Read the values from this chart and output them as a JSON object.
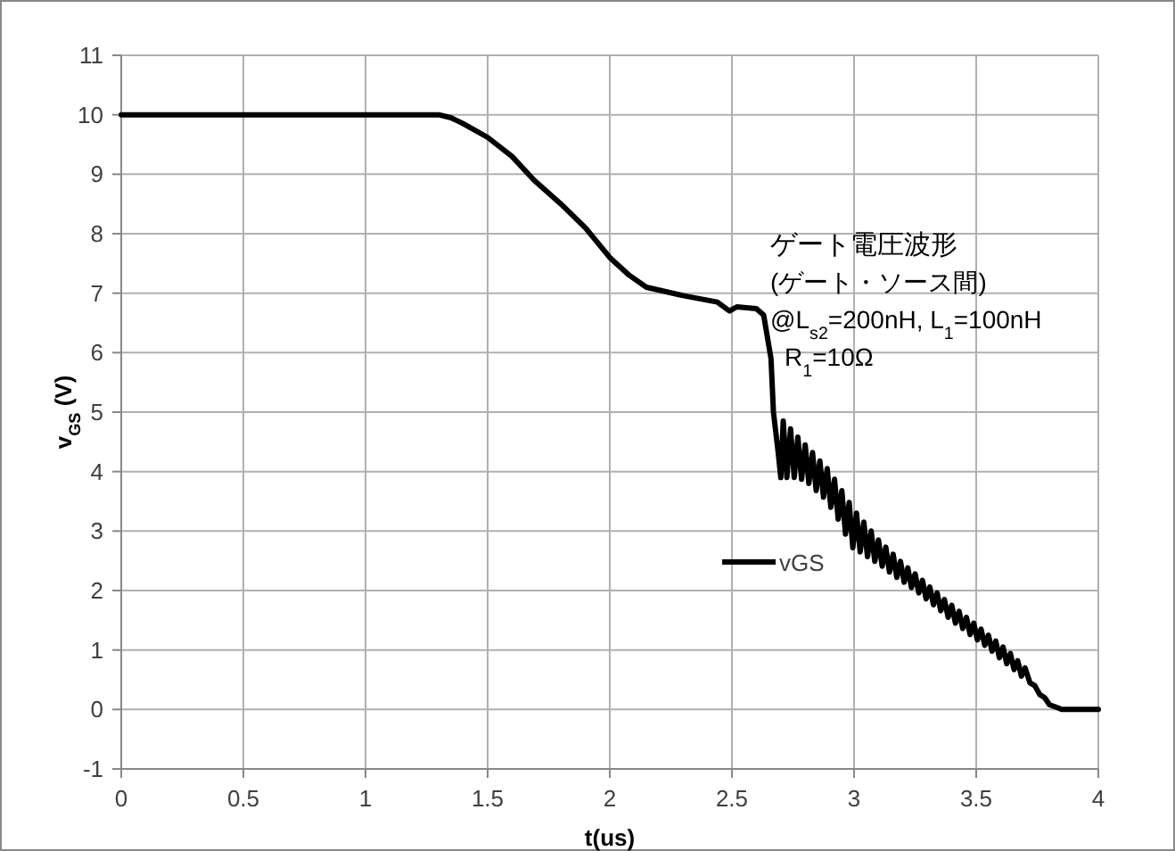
{
  "chart_data": {
    "type": "line",
    "xlabel": "t(us)",
    "ylabel": "v$_{GS}$ (V)",
    "annotations": [
      "ゲート電圧波形",
      "(ゲート・ソース間)",
      "@L$_{s2}$=200nH, L$_{1}$=100nH",
      "R$_{1}$=10Ω"
    ],
    "xlim": [
      0,
      4
    ],
    "ylim": [
      -1,
      11
    ],
    "xticks": [
      0,
      0.5,
      1,
      1.5,
      2,
      2.5,
      3,
      3.5,
      4
    ],
    "yticks": [
      -1,
      0,
      1,
      2,
      3,
      4,
      5,
      6,
      7,
      8,
      9,
      10,
      11
    ],
    "grid": true,
    "legend": "right",
    "marker": "none",
    "line_style": "solid",
    "series": [
      {
        "name": "vGS",
        "color": "#000000",
        "x": [
          0,
          1.3,
          1.35,
          1.4,
          1.5,
          1.6,
          1.69,
          1.8,
          1.9,
          2.0,
          2.08,
          2.15,
          2.3,
          2.44,
          2.49,
          2.52,
          2.6,
          2.63,
          2.66,
          2.67,
          2.69,
          2.7,
          2.71,
          2.725,
          2.74,
          2.755,
          2.77,
          2.785,
          2.8,
          2.815,
          2.83,
          2.845,
          2.86,
          2.875,
          2.89,
          2.905,
          2.92,
          2.935,
          2.95,
          2.965,
          2.98,
          2.995,
          3.01,
          3.025,
          3.04,
          3.055,
          3.07,
          3.085,
          3.1,
          3.115,
          3.13,
          3.145,
          3.16,
          3.175,
          3.19,
          3.205,
          3.22,
          3.235,
          3.25,
          3.265,
          3.28,
          3.295,
          3.31,
          3.325,
          3.34,
          3.355,
          3.37,
          3.385,
          3.4,
          3.415,
          3.43,
          3.445,
          3.46,
          3.475,
          3.49,
          3.505,
          3.52,
          3.535,
          3.55,
          3.565,
          3.58,
          3.595,
          3.61,
          3.625,
          3.64,
          3.655,
          3.67,
          3.685,
          3.7,
          3.72,
          3.74,
          3.76,
          3.78,
          3.8,
          3.82,
          3.85,
          3.9,
          4.0
        ],
        "values": [
          10,
          10,
          9.95,
          9.85,
          9.62,
          9.3,
          8.9,
          8.5,
          8.1,
          7.6,
          7.3,
          7.1,
          6.96,
          6.85,
          6.7,
          6.77,
          6.74,
          6.63,
          5.9,
          5.0,
          4.3,
          3.9,
          4.85,
          3.9,
          4.72,
          3.9,
          4.58,
          3.87,
          4.45,
          3.8,
          4.32,
          3.68,
          4.18,
          3.57,
          4.05,
          3.4,
          3.87,
          3.2,
          3.68,
          2.95,
          3.48,
          2.72,
          3.3,
          2.65,
          3.15,
          2.57,
          3.0,
          2.49,
          2.85,
          2.41,
          2.73,
          2.31,
          2.61,
          2.22,
          2.49,
          2.14,
          2.38,
          2.05,
          2.28,
          1.96,
          2.17,
          1.86,
          2.06,
          1.76,
          1.96,
          1.66,
          1.85,
          1.55,
          1.75,
          1.45,
          1.65,
          1.36,
          1.55,
          1.26,
          1.45,
          1.17,
          1.35,
          1.08,
          1.25,
          0.98,
          1.15,
          0.87,
          1.05,
          0.77,
          0.94,
          0.67,
          0.82,
          0.56,
          0.7,
          0.45,
          0.4,
          0.25,
          0.2,
          0.08,
          0.05,
          0,
          0,
          0
        ]
      }
    ]
  }
}
